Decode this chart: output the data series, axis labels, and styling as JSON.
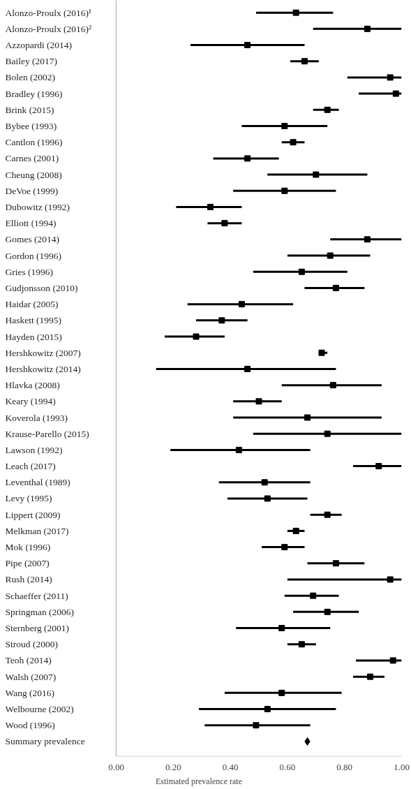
{
  "chart_data": {
    "type": "scatter",
    "orientation": "horizontal",
    "xlabel": "Estimated  prevalence  rate",
    "xlim": [
      0,
      1
    ],
    "xticks": [
      {
        "value": 0,
        "label": "0.00"
      },
      {
        "value": 0.2,
        "label": "0.20"
      },
      {
        "value": 0.4,
        "label": "0.40"
      },
      {
        "value": 0.6,
        "label": "0.60"
      },
      {
        "value": 0.8,
        "label": "0.80"
      },
      {
        "value": 1,
        "label": "1.00"
      }
    ],
    "grid": false,
    "categories": [
      "Alonzo-Proulx (2016)¹",
      "Alonzo-Proulx (2016)²",
      "Azzopardi (2014)",
      "Bailey (2017)",
      "Bolen (2002)",
      "Bradley (1996)",
      "Brink (2015)",
      "Bybee (1993)",
      "Cantlon (1996)",
      "Carnes (2001)",
      "Cheung (2008)",
      "DeVoe (1999)",
      "Dubowitz (1992)",
      "Elliott (1994)",
      "Gomes (2014)",
      "Gordon (1996)",
      "Gries (1996)",
      "Gudjonsson (2010)",
      "Haidar (2005)",
      "Haskett (1995)",
      "Hayden (2015)",
      "Hershkowitz (2007)",
      "Hershkowitz (2014)",
      "Hlavka (2008)",
      "Keary (1994)",
      "Koverola (1993)",
      "Krause-Parello (2015)",
      "Lawson (1992)",
      "Leach (2017)",
      "Leventhal (1989)",
      "Levy (1995)",
      "Lippert (2009)",
      "Melkman (2017)",
      "Mok (1996)",
      "Pipe (2007)",
      "Rush (2014)",
      "Schaeffer (2011)",
      "Springman (2006)",
      "Sternberg (2001)",
      "Stroud (2000)",
      "Teoh (2014)",
      "Walsh (2007)",
      "Wang (2016)",
      "Welbourne (2002)",
      "Wood (1996)",
      "Summary prevalence"
    ],
    "series": [
      {
        "color": "#000000",
        "marker": "square",
        "values": [
          0.63,
          0.88,
          0.46,
          0.66,
          0.96,
          0.98,
          0.74,
          0.59,
          0.62,
          0.46,
          0.7,
          0.59,
          0.33,
          0.38,
          0.88,
          0.75,
          0.65,
          0.77,
          0.44,
          0.37,
          0.28,
          0.72,
          0.46,
          0.76,
          0.5,
          0.67,
          0.74,
          0.43,
          0.92,
          0.52,
          0.53,
          0.74,
          0.63,
          0.59,
          0.77,
          0.96,
          0.69,
          0.74,
          0.58,
          0.65,
          0.97,
          0.89,
          0.58,
          0.53,
          0.49,
          null
        ],
        "errors": [
          [
            0.49,
            0.76
          ],
          [
            0.69,
            1.0
          ],
          [
            0.26,
            0.66
          ],
          [
            0.61,
            0.71
          ],
          [
            0.81,
            1.0
          ],
          [
            0.85,
            1.0
          ],
          [
            0.69,
            0.78
          ],
          [
            0.44,
            0.74
          ],
          [
            0.58,
            0.66
          ],
          [
            0.34,
            0.57
          ],
          [
            0.53,
            0.88
          ],
          [
            0.41,
            0.77
          ],
          [
            0.21,
            0.44
          ],
          [
            0.32,
            0.44
          ],
          [
            0.75,
            1.0
          ],
          [
            0.6,
            0.89
          ],
          [
            0.48,
            0.81
          ],
          [
            0.66,
            0.87
          ],
          [
            0.25,
            0.62
          ],
          [
            0.28,
            0.46
          ],
          [
            0.17,
            0.38
          ],
          [
            0.71,
            0.74
          ],
          [
            0.14,
            0.77
          ],
          [
            0.58,
            0.93
          ],
          [
            0.41,
            0.58
          ],
          [
            0.41,
            0.93
          ],
          [
            0.48,
            1.0
          ],
          [
            0.19,
            0.68
          ],
          [
            0.83,
            1.0
          ],
          [
            0.36,
            0.68
          ],
          [
            0.39,
            0.67
          ],
          [
            0.68,
            0.79
          ],
          [
            0.6,
            0.66
          ],
          [
            0.51,
            0.66
          ],
          [
            0.67,
            0.87
          ],
          [
            0.6,
            1.0
          ],
          [
            0.59,
            0.78
          ],
          [
            0.62,
            0.85
          ],
          [
            0.42,
            0.75
          ],
          [
            0.6,
            0.7
          ],
          [
            0.84,
            1.0
          ],
          [
            0.83,
            0.94
          ],
          [
            0.38,
            0.79
          ],
          [
            0.29,
            0.77
          ],
          [
            0.31,
            0.68
          ],
          null
        ]
      },
      {
        "color": "#000000",
        "marker": "diamond",
        "values": [
          null,
          null,
          null,
          null,
          null,
          null,
          null,
          null,
          null,
          null,
          null,
          null,
          null,
          null,
          null,
          null,
          null,
          null,
          null,
          null,
          null,
          null,
          null,
          null,
          null,
          null,
          null,
          null,
          null,
          null,
          null,
          null,
          null,
          null,
          null,
          null,
          null,
          null,
          null,
          null,
          null,
          null,
          null,
          null,
          null,
          0.67
        ]
      }
    ]
  }
}
